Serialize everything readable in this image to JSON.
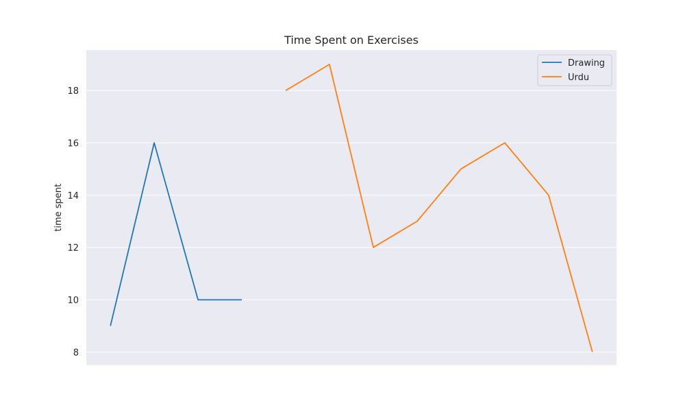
{
  "chart_data": {
    "type": "line",
    "title": "Time Spent on Exercises",
    "xlabel": "",
    "ylabel": "time spent",
    "ylim": [
      7.5,
      19.55
    ],
    "yticks": [
      8,
      10,
      12,
      14,
      16,
      18
    ],
    "xlim": [
      -0.55,
      11.55
    ],
    "grid": true,
    "legend_position": "top-right",
    "background": "#eaeaf2",
    "series": [
      {
        "name": "Drawing",
        "color": "#1f77b4",
        "x": [
          0,
          1,
          2,
          3
        ],
        "values": [
          9,
          16,
          10,
          10
        ]
      },
      {
        "name": "Urdu",
        "color": "#ff7f0e",
        "x": [
          4,
          5,
          6,
          7,
          8,
          9,
          10,
          11
        ],
        "values": [
          18,
          19,
          12,
          13,
          15,
          16,
          14,
          8
        ]
      }
    ]
  }
}
